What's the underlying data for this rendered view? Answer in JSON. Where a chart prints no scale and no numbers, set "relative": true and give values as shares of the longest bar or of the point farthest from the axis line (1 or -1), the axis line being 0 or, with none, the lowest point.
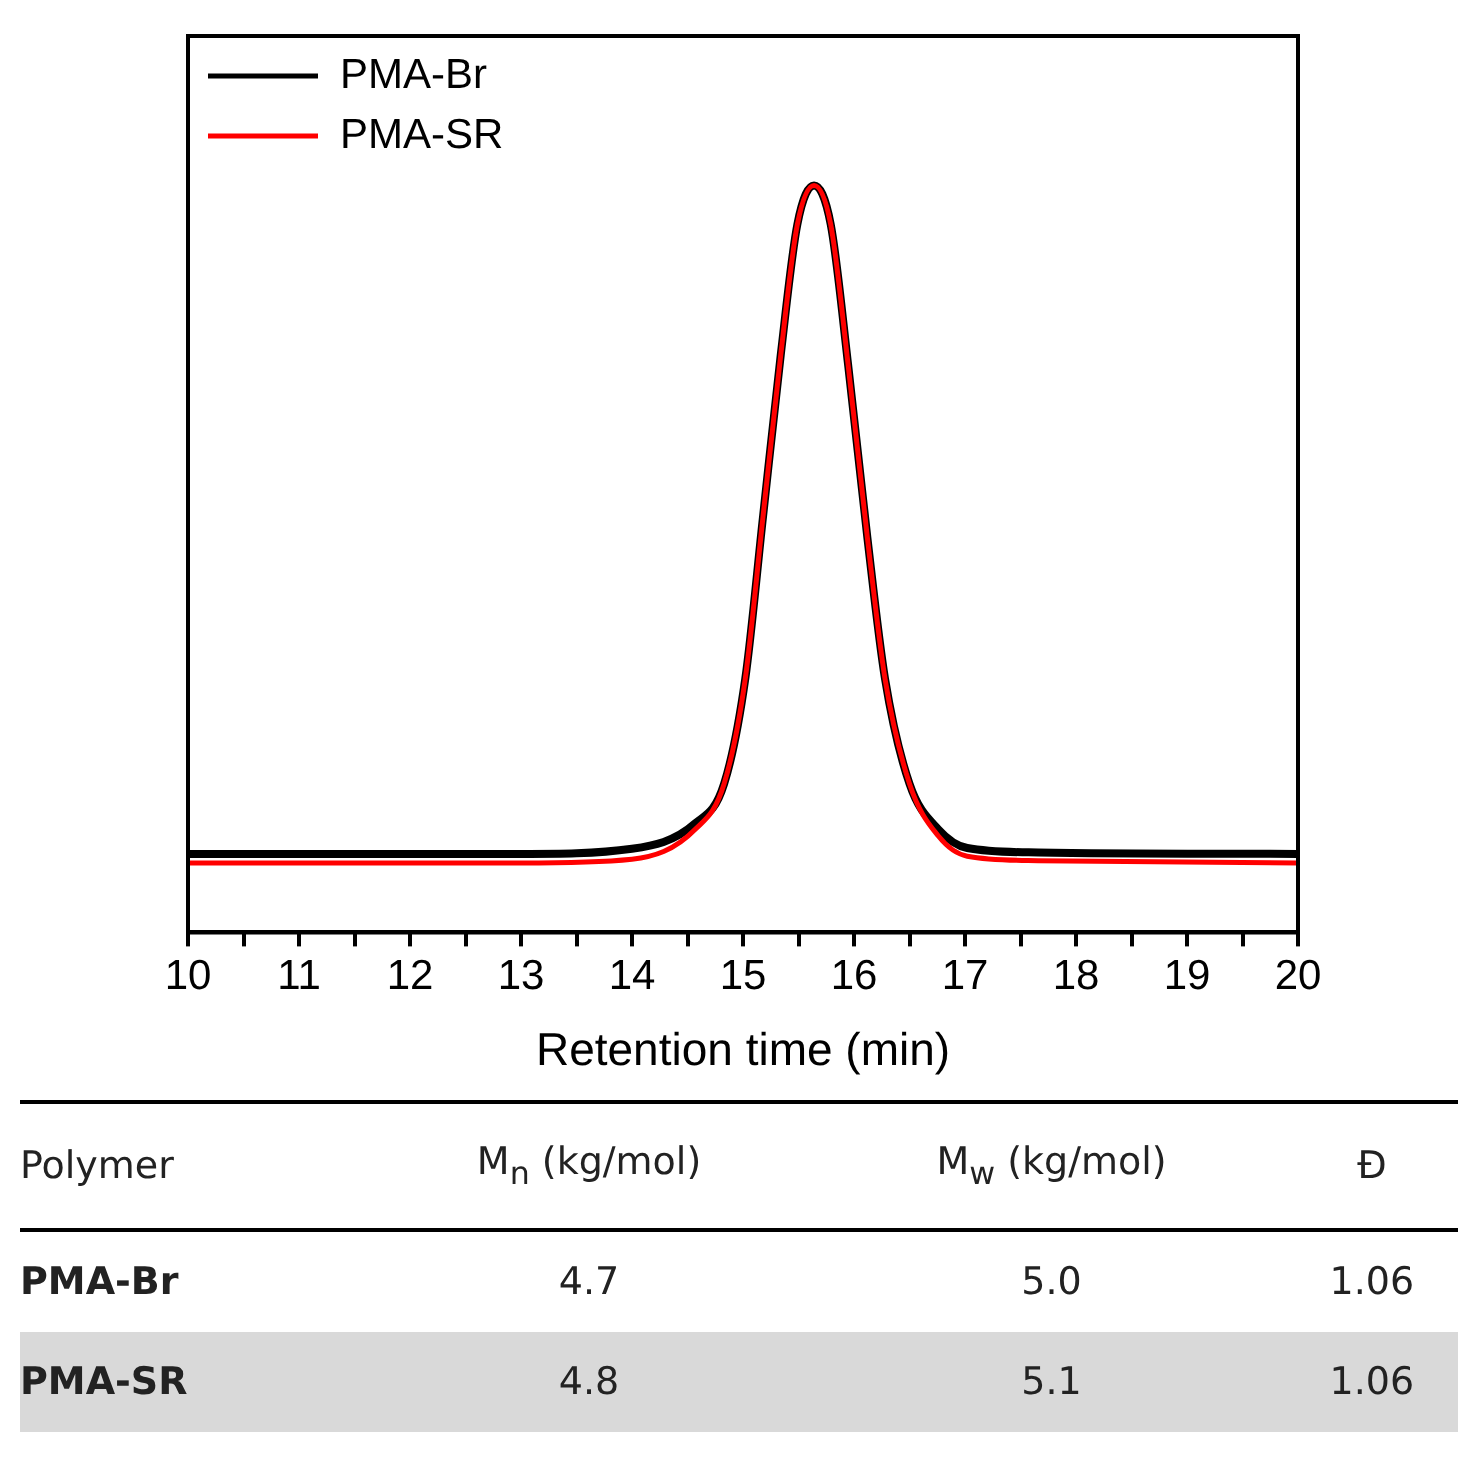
{
  "chart_data": [
    {
      "type": "line",
      "xlabel": "Retention time (min)",
      "relative": true,
      "legend": "top left",
      "marker": "none",
      "line_style": "solid",
      "grid": false,
      "tick_labels": "x",
      "xlim": [
        10,
        20
      ],
      "xticks": [
        10,
        {
          "value": 10.5,
          "label": null
        },
        11,
        {
          "value": 11.5,
          "label": null
        },
        12,
        {
          "value": 12.5,
          "label": null
        },
        13,
        {
          "value": 13.5,
          "label": null
        },
        14,
        {
          "value": 14.5,
          "label": null
        },
        15,
        {
          "value": 15.5,
          "label": null
        },
        16,
        {
          "value": 16.5,
          "label": null
        },
        17,
        {
          "value": 17.5,
          "label": null
        },
        18,
        {
          "value": 18.5,
          "label": null
        },
        19,
        {
          "value": 19.5,
          "label": null
        },
        20
      ],
      "x": [
        10,
        13,
        14.0,
        14.57,
        14.83,
        15.02,
        15.18,
        15.34,
        15.49,
        15.64,
        15.79,
        15.95,
        16.12,
        16.28,
        16.5,
        16.76,
        17.02,
        17.66,
        20
      ],
      "series": [
        {
          "name": "PMA-Br",
          "color": "#000000",
          "values": [
            0.105,
            0.105,
            0.112,
            0.146,
            0.199,
            0.339,
            0.556,
            0.773,
            0.948,
            1,
            0.948,
            0.756,
            0.529,
            0.339,
            0.199,
            0.138,
            0.113,
            0.107,
            0.105
          ]
        },
        {
          "name": "PMA-SR",
          "color": "#ff0000",
          "values": [
            0.093,
            0.093,
            0.098,
            0.138,
            0.199,
            0.339,
            0.556,
            0.773,
            0.948,
            1,
            0.948,
            0.756,
            0.529,
            0.339,
            0.199,
            0.129,
            0.102,
            0.096,
            0.093
          ]
        }
      ]
    },
    {
      "type": "other",
      "categories": [
        "Polymer",
        "M$_{n}$ (kg/mol)",
        "M$_{w}$ (kg/mol)",
        "Đ"
      ],
      "y_categories": [
        "PMA-Br",
        "PMA-SR"
      ],
      "cell_labels": [
        [
          "4.7",
          "5.0",
          "1.06"
        ],
        [
          "4.8",
          "5.1",
          "1.06"
        ]
      ]
    }
  ]
}
